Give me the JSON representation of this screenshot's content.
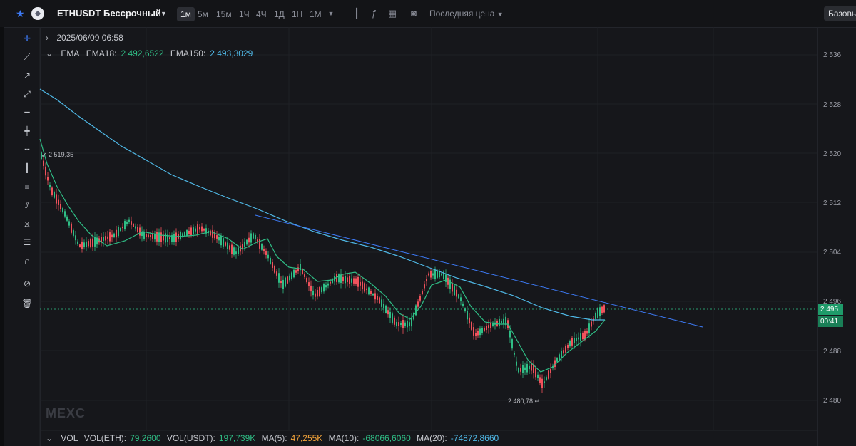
{
  "topbar": {
    "symbol": "ETHUSDT Бессрочный",
    "timeframes": [
      "1м",
      "5м",
      "15м",
      "1Ч",
      "4Ч",
      "1Д",
      "1Н",
      "1М"
    ],
    "price_source": "Последняя цена",
    "base_button": "Базовый"
  },
  "legend": {
    "date": "2025/06/09 06:58",
    "ema_title": "EMA",
    "ema18_label": "EMA18:",
    "ema18_value": "2 492,6522",
    "ema150_label": "EMA150:",
    "ema150_value": "2 493,3029"
  },
  "volume": {
    "title": "VOL",
    "vol_eth_label": "VOL(ETH):",
    "vol_eth_value": "79,2600",
    "vol_usdt_label": "VOL(USDT):",
    "vol_usdt_value": "197,739K",
    "ma5_label": "MA(5):",
    "ma5_value": "47,255K",
    "ma10_label": "MA(10):",
    "ma10_value": "-68066,6060",
    "ma20_label": "MA(20):",
    "ma20_value": "-74872,8660"
  },
  "price_axis": {
    "ticks": [
      "2 536",
      "2 528",
      "2 520",
      "2 512",
      "2 504",
      "2 496",
      "2 488",
      "2 480"
    ],
    "current_price": "2 495",
    "countdown": "00:41"
  },
  "annotations": {
    "high_label": "2 519,35",
    "low_label": "2 480,78"
  },
  "watermark": "MEXC",
  "colors": {
    "up": "#2fbd85",
    "down": "#f0525c",
    "ema18": "#2fbd85",
    "ema150": "#4fb8e6",
    "trendline": "#3d7af5",
    "accent": "#3d7af5"
  }
}
